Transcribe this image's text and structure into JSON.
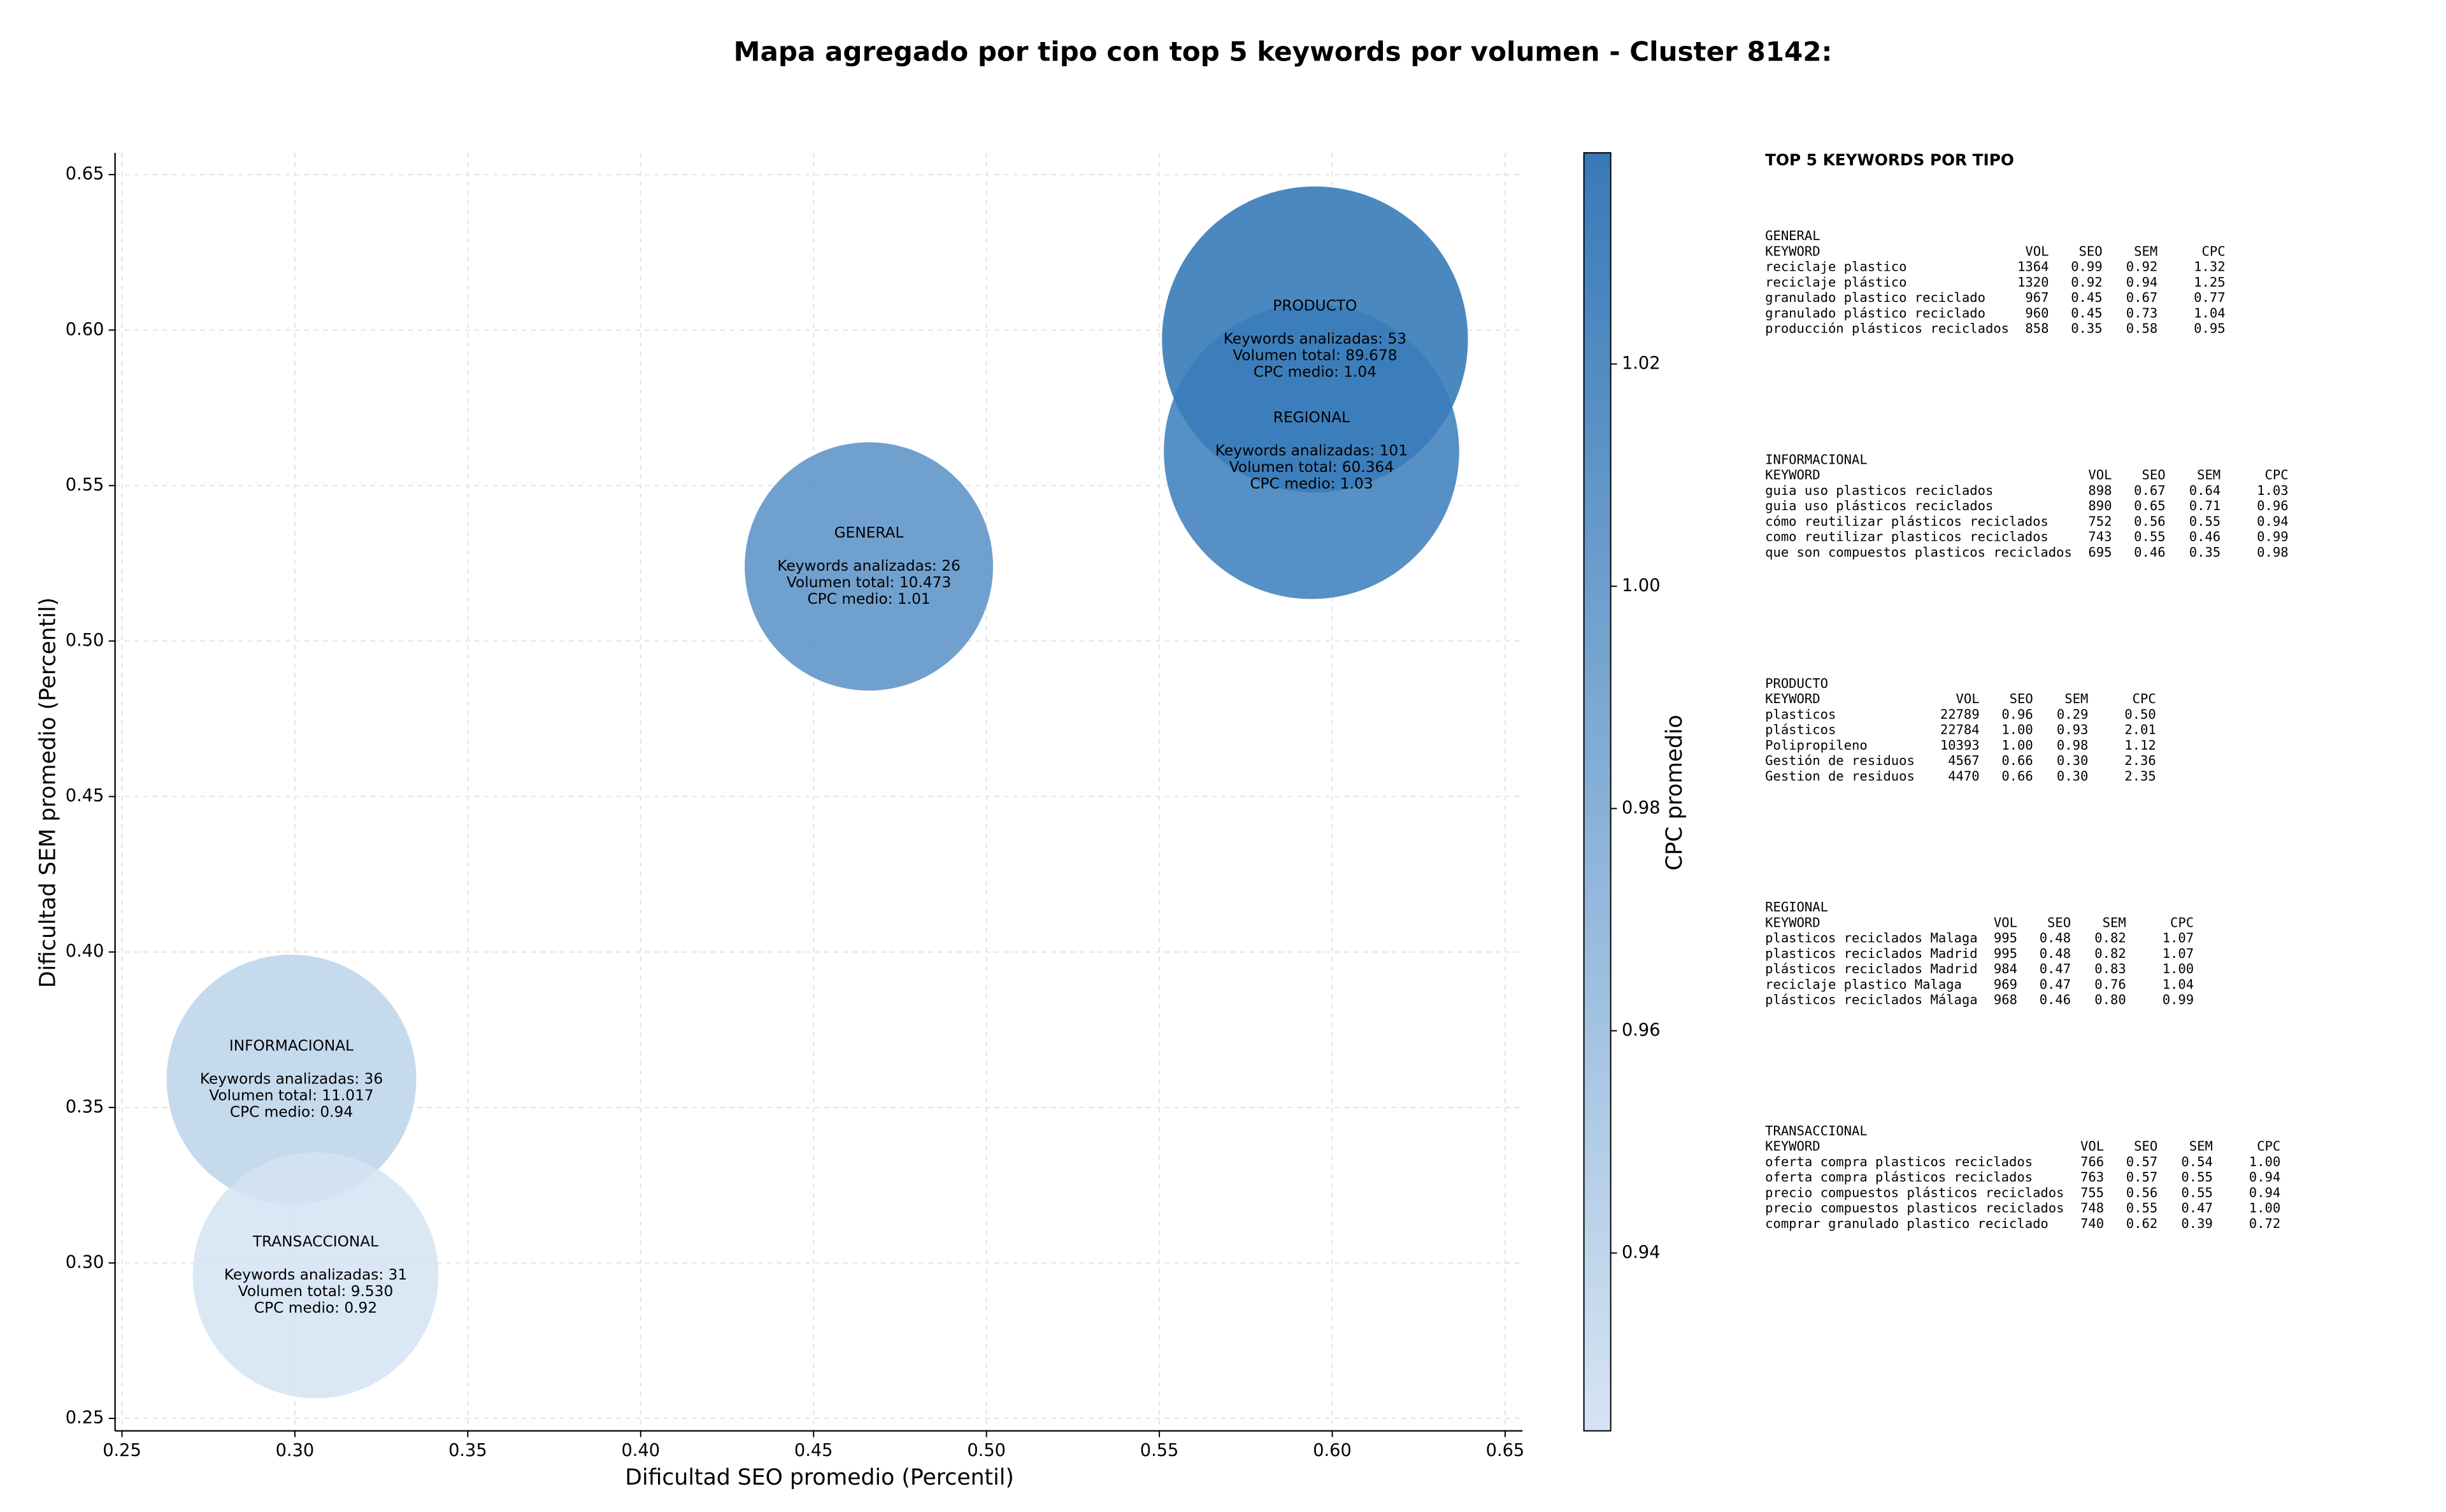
{
  "chart_data": {
    "type": "bubble",
    "title": "Mapa agregado por tipo con top 5 keywords por volumen - Cluster 8142:",
    "x_label": "Dificultad SEO promedio (Percentil)",
    "y_label": "Dificultad SEM promedio (Percentil)",
    "colorbar_label": "CPC promedio",
    "xlim": [
      0.248,
      0.655
    ],
    "ylim": [
      0.246,
      0.657
    ],
    "clim": [
      0.924,
      1.039
    ],
    "colormap": [
      "#d3e3f3",
      "#2d73b5"
    ],
    "grid": true,
    "xticks": [
      0.25,
      {
        "value": 0.3,
        "label": "0.30"
      },
      0.35,
      {
        "value": 0.4,
        "label": "0.40"
      },
      0.45,
      {
        "value": 0.5,
        "label": "0.50"
      },
      0.55,
      {
        "value": 0.6,
        "label": "0.60"
      },
      0.65
    ],
    "yticks": [
      0.25,
      {
        "value": 0.3,
        "label": "0.30"
      },
      0.35,
      {
        "value": 0.4,
        "label": "0.40"
      },
      0.45,
      {
        "value": 0.5,
        "label": "0.50"
      },
      0.55,
      {
        "value": 0.6,
        "label": "0.60"
      },
      0.65
    ],
    "cticks": [
      0.94,
      0.96,
      0.98,
      {
        "value": 1.0,
        "label": "1.00"
      },
      1.02
    ],
    "points": [
      {
        "name": "GENERAL",
        "x": 0.466,
        "y": 0.524,
        "size": 10473,
        "cpc": 1.01,
        "keywords_text": "Keywords analizadas: 26",
        "volume_text": "Volumen total: 10.473",
        "cpc_text": "CPC medio: 1.01"
      },
      {
        "name": "INFORMACIONAL",
        "x": 0.299,
        "y": 0.359,
        "size": 11017,
        "cpc": 0.94,
        "keywords_text": "Keywords analizadas: 36",
        "volume_text": "Volumen total: 11.017",
        "cpc_text": "CPC medio: 0.94"
      },
      {
        "name": "PRODUCTO",
        "x": 0.595,
        "y": 0.597,
        "size": 89678,
        "cpc": 1.04,
        "keywords_text": "Keywords analizadas: 53",
        "volume_text": "Volumen total: 89.678",
        "cpc_text": "CPC medio: 1.04"
      },
      {
        "name": "REGIONAL",
        "x": 0.594,
        "y": 0.561,
        "size": 60364,
        "cpc": 1.03,
        "keywords_text": "Keywords analizadas: 101",
        "volume_text": "Volumen total: 60.364",
        "cpc_text": "CPC medio: 1.03"
      },
      {
        "name": "TRANSACCIONAL",
        "x": 0.306,
        "y": 0.296,
        "size": 9530,
        "cpc": 0.92,
        "keywords_text": "Keywords analizadas: 31",
        "volume_text": "Volumen total: 9.530",
        "cpc_text": "CPC medio: 0.92"
      }
    ]
  },
  "keyword_panel": {
    "title": "TOP 5 KEYWORDS POR TIPO",
    "header": [
      "KEYWORD",
      "VOL",
      "SEO",
      "SEM",
      "CPC"
    ],
    "groups": [
      {
        "name": "GENERAL",
        "rows": [
          [
            "reciclaje plastico",
            "1364",
            "0.99",
            "0.92",
            "1.32"
          ],
          [
            "reciclaje plástico",
            "1320",
            "0.92",
            "0.94",
            "1.25"
          ],
          [
            "granulado plastico reciclado",
            "967",
            "0.45",
            "0.67",
            "0.77"
          ],
          [
            "granulado plástico reciclado",
            "960",
            "0.45",
            "0.73",
            "1.04"
          ],
          [
            "producción plásticos reciclados",
            "858",
            "0.35",
            "0.58",
            "0.95"
          ]
        ]
      },
      {
        "name": "INFORMACIONAL",
        "rows": [
          [
            "guia uso plasticos reciclados",
            "898",
            "0.67",
            "0.64",
            "1.03"
          ],
          [
            "guia uso plásticos reciclados",
            "890",
            "0.65",
            "0.71",
            "0.96"
          ],
          [
            "cómo reutilizar plásticos reciclados",
            "752",
            "0.56",
            "0.55",
            "0.94"
          ],
          [
            "como reutilizar plasticos reciclados",
            "743",
            "0.55",
            "0.46",
            "0.99"
          ],
          [
            "que son compuestos plasticos reciclados",
            "695",
            "0.46",
            "0.35",
            "0.98"
          ]
        ]
      },
      {
        "name": "PRODUCTO",
        "rows": [
          [
            "plasticos",
            "22789",
            "0.96",
            "0.29",
            "0.50"
          ],
          [
            "plásticos",
            "22784",
            "1.00",
            "0.93",
            "2.01"
          ],
          [
            "Polipropileno",
            "10393",
            "1.00",
            "0.98",
            "1.12"
          ],
          [
            "Gestión de residuos",
            "4567",
            "0.66",
            "0.30",
            "2.36"
          ],
          [
            "Gestion de residuos",
            "4470",
            "0.66",
            "0.30",
            "2.35"
          ]
        ]
      },
      {
        "name": "REGIONAL",
        "rows": [
          [
            "plasticos reciclados Malaga",
            "995",
            "0.48",
            "0.82",
            "1.07"
          ],
          [
            "plasticos reciclados Madrid",
            "995",
            "0.48",
            "0.82",
            "1.07"
          ],
          [
            "plásticos reciclados Madrid",
            "984",
            "0.47",
            "0.83",
            "1.00"
          ],
          [
            "reciclaje plastico Malaga",
            "969",
            "0.47",
            "0.76",
            "1.04"
          ],
          [
            "plásticos reciclados Málaga",
            "968",
            "0.46",
            "0.80",
            "0.99"
          ]
        ]
      },
      {
        "name": "TRANSACCIONAL",
        "rows": [
          [
            "oferta compra plasticos reciclados",
            "766",
            "0.57",
            "0.54",
            "1.00"
          ],
          [
            "oferta compra plásticos reciclados",
            "763",
            "0.57",
            "0.55",
            "0.94"
          ],
          [
            "precio compuestos plásticos reciclados",
            "755",
            "0.56",
            "0.55",
            "0.94"
          ],
          [
            "precio compuestos plasticos reciclados",
            "748",
            "0.55",
            "0.47",
            "1.00"
          ],
          [
            "comprar granulado plastico reciclado",
            "740",
            "0.62",
            "0.39",
            "0.72"
          ]
        ]
      }
    ]
  }
}
